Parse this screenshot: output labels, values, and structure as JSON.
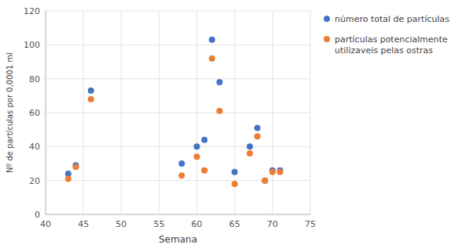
{
  "chart_data": {
    "type": "scatter",
    "xlabel": "Semana",
    "ylabel": "Nº de partículas por 0,0001 ml",
    "x": [
      43,
      44,
      46,
      58,
      60,
      61,
      62,
      63,
      65,
      67,
      68,
      69,
      70,
      71
    ],
    "series": [
      {
        "name": "número total de partículas",
        "color": "#4472C4",
        "marker": "circle",
        "values": [
          24,
          29,
          73,
          30,
          40,
          44,
          103,
          78,
          25,
          40,
          51,
          20,
          26,
          26
        ]
      },
      {
        "name": "partículas potencialmente\nutilizaveis pelas ostras",
        "color": "#ED7D31",
        "marker": "circle",
        "values": [
          21,
          28,
          68,
          23,
          34,
          26,
          92,
          61,
          18,
          36,
          46,
          20,
          25,
          25
        ]
      }
    ],
    "xlim": [
      40,
      75
    ],
    "ylim": [
      0,
      120
    ],
    "xticks": [
      40,
      45,
      50,
      55,
      60,
      65,
      70,
      75
    ],
    "yticks": [
      0,
      20,
      40,
      60,
      80,
      100,
      120
    ],
    "grid": true,
    "legend": "right"
  }
}
